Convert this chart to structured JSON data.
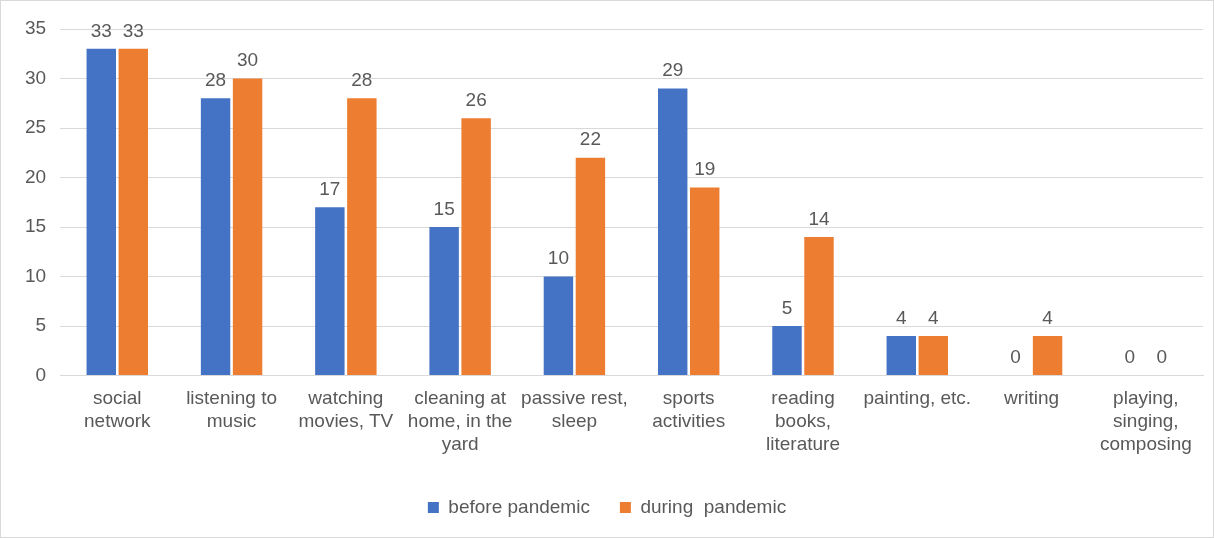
{
  "chart_data": {
    "type": "bar",
    "categories": [
      "social network",
      "listening to music",
      "watching movies, TV",
      "cleaning at home, in the yard",
      "passive rest, sleep",
      "sports activities",
      "reading books, literature",
      "painting, etc.",
      "writing",
      "playing, singing, composing"
    ],
    "series": [
      {
        "name": "before pandemic",
        "color": "#4472c4",
        "values": [
          33,
          28,
          17,
          15,
          10,
          29,
          5,
          4,
          0,
          0
        ]
      },
      {
        "name": "during  pandemic",
        "color": "#ed7d31",
        "values": [
          33,
          30,
          28,
          26,
          22,
          19,
          14,
          4,
          4,
          0
        ]
      }
    ],
    "ylim": [
      0,
      35
    ],
    "yticks": [
      0,
      5,
      10,
      15,
      20,
      25,
      30,
      35
    ],
    "grid": "y",
    "legend": "bottom",
    "data_labels": true
  }
}
